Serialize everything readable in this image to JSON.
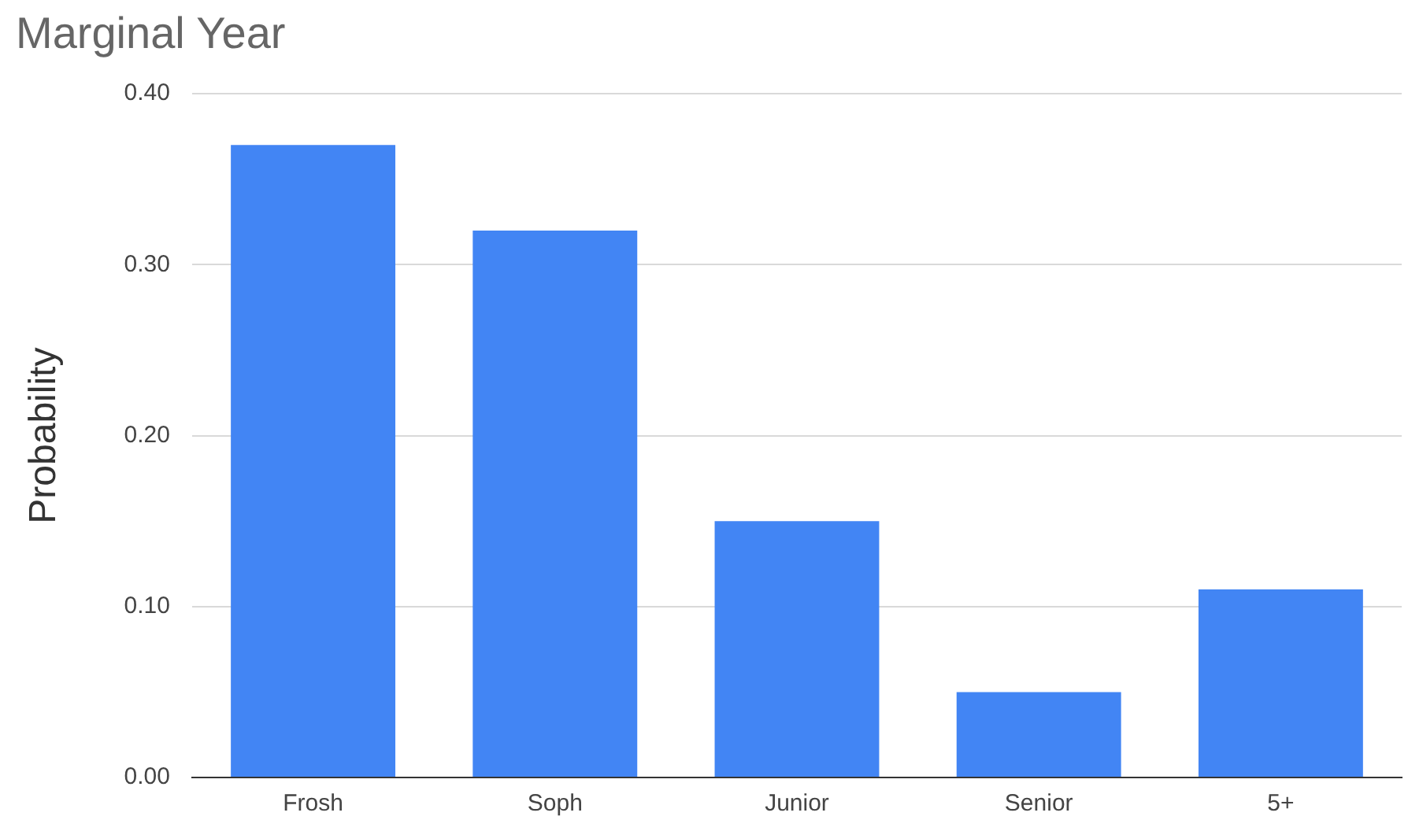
{
  "chart_data": {
    "type": "bar",
    "title": "Marginal Year",
    "ylabel": "Probability",
    "categories": [
      "Frosh",
      "Soph",
      "Junior",
      "Senior",
      "5+"
    ],
    "values": [
      0.37,
      0.32,
      0.15,
      0.05,
      0.11
    ],
    "color": "#4285f4",
    "ylim": [
      0,
      0.4
    ],
    "yticks": [
      {
        "value": 0,
        "label": "0.00"
      },
      {
        "value": 0.1,
        "label": "0.10"
      },
      {
        "value": 0.2,
        "label": "0.20"
      },
      {
        "value": 0.3,
        "label": "0.30"
      },
      {
        "value": 0.4,
        "label": "0.40"
      }
    ],
    "grid": "y"
  }
}
